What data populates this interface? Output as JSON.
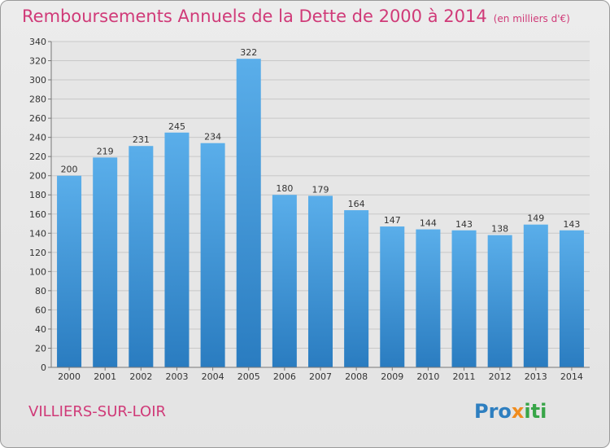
{
  "title": "Remboursements Annuels de la Dette de 2000 à 2014",
  "subtitle": "(en milliers d'€)",
  "commune": "VILLIERS-SUR-LOIR",
  "logo": {
    "part1": "Pro",
    "part2": "x",
    "part3": "iti"
  },
  "colors": {
    "bar_top": "#5aaeea",
    "bar_bottom": "#2a7cc0",
    "title": "#d03a78"
  },
  "chart_data": {
    "type": "bar",
    "categories": [
      "2000",
      "2001",
      "2002",
      "2003",
      "2004",
      "2005",
      "2006",
      "2007",
      "2008",
      "2009",
      "2010",
      "2011",
      "2012",
      "2013",
      "2014"
    ],
    "values": [
      200,
      219,
      231,
      245,
      234,
      322,
      180,
      179,
      164,
      147,
      144,
      143,
      138,
      149,
      143
    ],
    "title": "Remboursements Annuels de la Dette de 2000 à 2014",
    "subtitle": "(en milliers d'€)",
    "ylim": [
      0,
      340
    ],
    "yticks": [
      0,
      20,
      40,
      60,
      80,
      100,
      120,
      140,
      160,
      180,
      200,
      220,
      240,
      260,
      280,
      300,
      320,
      340
    ],
    "grid": true
  }
}
